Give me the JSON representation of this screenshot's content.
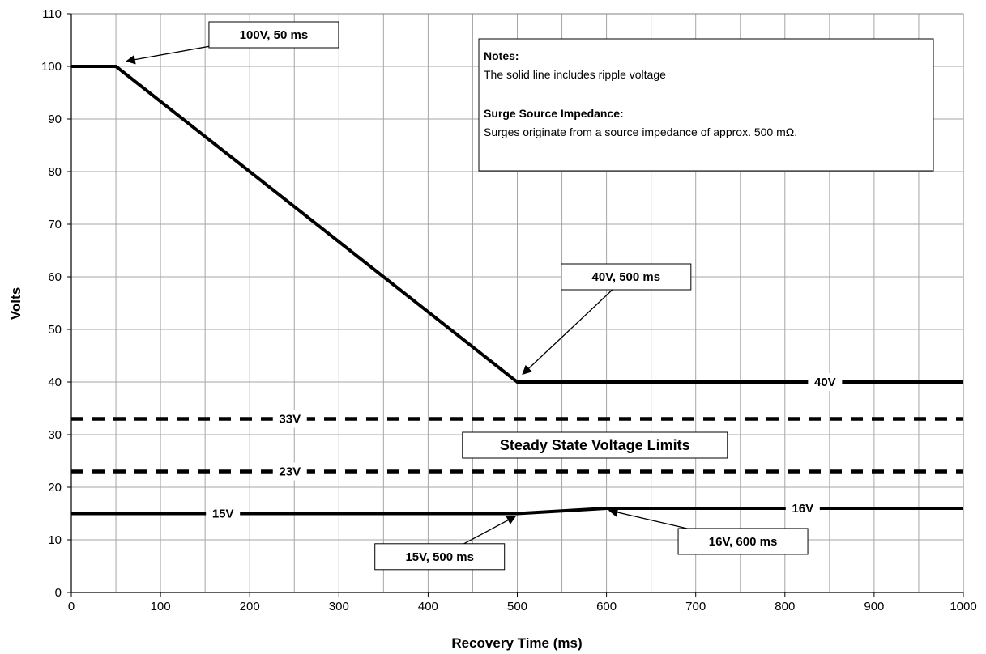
{
  "chart_data": {
    "type": "line",
    "xlabel": "Recovery Time (ms)",
    "ylabel": "Volts",
    "xlim": [
      0,
      1000
    ],
    "ylim": [
      0,
      110
    ],
    "x_ticks": [
      0,
      100,
      200,
      300,
      400,
      500,
      600,
      700,
      800,
      900,
      1000
    ],
    "y_ticks": [
      0,
      10,
      20,
      30,
      40,
      50,
      60,
      70,
      80,
      90,
      100,
      110
    ],
    "grid": true,
    "series": [
      {
        "style": "solid",
        "points": [
          [
            0,
            100
          ],
          [
            50,
            100
          ],
          [
            500,
            40
          ],
          [
            1000,
            40
          ]
        ]
      },
      {
        "style": "solid",
        "points": [
          [
            0,
            15
          ],
          [
            500,
            15
          ],
          [
            600,
            16
          ],
          [
            1000,
            16
          ]
        ]
      },
      {
        "style": "dashed",
        "points": [
          [
            0,
            33
          ],
          [
            1000,
            33
          ]
        ]
      },
      {
        "style": "dashed",
        "points": [
          [
            0,
            23
          ],
          [
            1000,
            23
          ]
        ]
      }
    ],
    "inline_labels": [
      {
        "text": "40V",
        "x": 845,
        "y": 40
      },
      {
        "text": "33V",
        "x": 245,
        "y": 33
      },
      {
        "text": "23V",
        "x": 245,
        "y": 23
      },
      {
        "text": "15V",
        "x": 170,
        "y": 15
      },
      {
        "text": "16V",
        "x": 820,
        "y": 16
      }
    ],
    "callouts": [
      {
        "text": "100V, 50 ms",
        "box_center": [
          227,
          106
        ],
        "target": [
          62,
          101
        ]
      },
      {
        "text": "40V, 500 ms",
        "box_center": [
          622,
          60
        ],
        "target": [
          506,
          41.5
        ]
      },
      {
        "text": "15V, 500 ms",
        "box_center": [
          413,
          6.8
        ],
        "target": [
          498,
          14.5
        ]
      },
      {
        "text": "16V, 600 ms",
        "box_center": [
          753,
          9.7
        ],
        "target": [
          603,
          15.6
        ]
      }
    ],
    "center_label": {
      "text": "Steady State Voltage Limits",
      "x": 587,
      "y": 28
    },
    "notes": {
      "heading1": "Notes:",
      "line1": "The solid line includes ripple voltage",
      "heading2": "Surge Source Impedance:",
      "line2": "Surges originate from a source impedance of approx. 500 mΩ."
    }
  }
}
